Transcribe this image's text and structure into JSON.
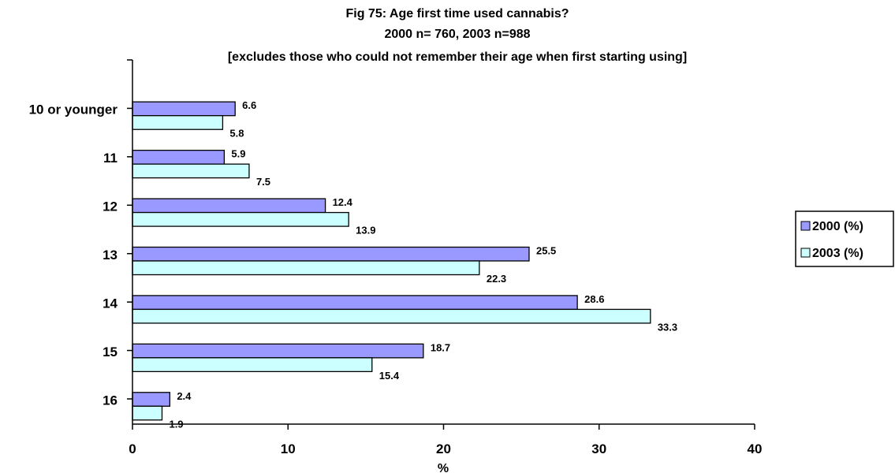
{
  "chart_data": {
    "type": "bar",
    "orientation": "horizontal",
    "title": [
      "Fig 75:   Age first time used cannabis?",
      "2000 n= 760, 2003 n=988",
      "[excludes those who could not remember their age when first starting using]"
    ],
    "xlabel": "%",
    "ylabel": "",
    "xlim": [
      0,
      40
    ],
    "xticks": [
      0,
      10,
      20,
      30,
      40
    ],
    "categories": [
      "10 or younger",
      "11",
      "12",
      "13",
      "14",
      "15",
      "16"
    ],
    "series": [
      {
        "name": "2000 (%)",
        "color": "#9999ff",
        "values": [
          6.6,
          5.9,
          12.4,
          25.5,
          28.6,
          18.7,
          2.4
        ]
      },
      {
        "name": "2003 (%)",
        "color": "#ccffff",
        "values": [
          5.8,
          7.5,
          13.9,
          22.3,
          33.3,
          15.4,
          1.9
        ]
      }
    ],
    "grid": false,
    "legend_position": "right"
  }
}
